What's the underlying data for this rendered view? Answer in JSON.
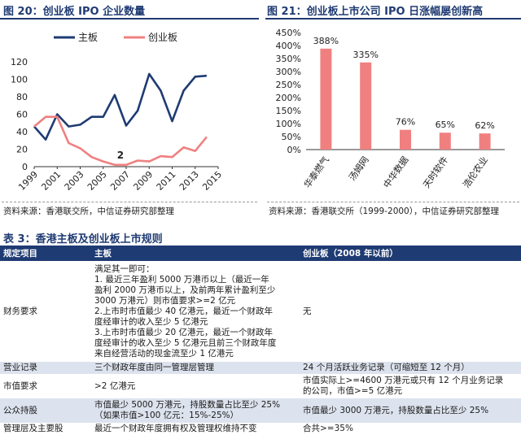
{
  "fig20": {
    "title": "图 20：创业板 IPO 企业数量",
    "source": "资料来源：香港联交所，中信证券研究部整理",
    "chart_data": {
      "type": "line",
      "x": [
        1999,
        2000,
        2001,
        2002,
        2003,
        2004,
        2005,
        2006,
        2007,
        2008,
        2009,
        2010,
        2011,
        2012,
        2013,
        2014,
        2015
      ],
      "xticks": [
        "1999",
        "2001",
        "2003",
        "2005",
        "2007",
        "2009",
        "2011",
        "2013",
        "2015"
      ],
      "yticks": [
        "0",
        "20",
        "40",
        "60",
        "80",
        "100",
        "120"
      ],
      "ylim": [
        0,
        120
      ],
      "series": [
        {
          "name": "主板",
          "color": "#1f3b73",
          "values": [
            46,
            31,
            60,
            46,
            48,
            57,
            57,
            82,
            47,
            64,
            106,
            87,
            52,
            87,
            103,
            104,
            null
          ]
        },
        {
          "name": "创业板",
          "color": "#f08080",
          "values": [
            46,
            57,
            57,
            27,
            21,
            11,
            6,
            2,
            2,
            7,
            6,
            12,
            11,
            22,
            18,
            34,
            null
          ]
        }
      ],
      "annotations": [
        {
          "text": "2",
          "x": 2006.5,
          "y": 2
        }
      ],
      "legend": "top"
    }
  },
  "fig21": {
    "title": "图 21：创业板上市公司 IPO 日涨幅屡创新高",
    "source": "资料来源：香港联交所（1999-2000），中信证券研究部整理",
    "chart_data": {
      "type": "bar",
      "categories": [
        "华泰燃气",
        "汤姆网",
        "中华数据",
        "天时软件",
        "浩伦农业"
      ],
      "values": [
        388,
        335,
        76,
        65,
        62
      ],
      "data_labels": [
        "388%",
        "335%",
        "76%",
        "65%",
        "62%"
      ],
      "yticks": [
        "0%",
        "50%",
        "100%",
        "150%",
        "200%",
        "250%",
        "300%",
        "350%",
        "400%",
        "450%"
      ],
      "ylim": [
        0,
        450
      ],
      "color": "#f08080"
    }
  },
  "table3": {
    "title": "表 3：香港主板及创业板上市规则",
    "headers": [
      "规定项目",
      "主板",
      "创业板（2008 年以前）"
    ],
    "rows": [
      {
        "item": "财务要求",
        "main_lines": [
          "满足其一即可：",
          "1. 最近三年盈利 5000 万港币以上（最近一年",
          "盈利 2000 万港币以上，及前两年累计盈利至少",
          "3000 万港元）则市值要求>=2 亿元",
          "2.上市时市值最少 40 亿港元，最近一个财政年",
          "度经审计的收入至少 5 亿港元",
          "3.上市时市值最少 20 亿港元，最近一个财政年",
          "度经审计的收入至少 5 亿港元且前三个财政年度",
          "来自经营活动的现金流至少 1 亿港元"
        ],
        "gem_lines": [
          "无"
        ]
      },
      {
        "item": "营业记录",
        "main_lines": [
          "三个财政年度由同一管理层管理"
        ],
        "gem_lines": [
          "24 个月活跃业务记录（可缩短至 12 个月）"
        ]
      },
      {
        "item": "市值要求",
        "main_lines": [
          ">2 亿港元"
        ],
        "gem_lines": [
          "市值实际上>=4600 万港元或只有 12 个月业务记录",
          "的公司，市值>=5 亿港元"
        ]
      },
      {
        "item": "公众持股",
        "main_lines": [
          "市值最少 5000 万港元，持股数量占比至少 25%",
          "（如果市值>100 亿元：15%-25%）"
        ],
        "gem_lines": [
          "市值最少 3000 万港元，持股数量占比至少 25%"
        ]
      },
      {
        "item": "管理层及主要股",
        "main_lines": [
          "最近一个财政年度拥有权及管理权维持不变"
        ],
        "gem_lines": [
          "合共>=35%"
        ]
      }
    ]
  }
}
